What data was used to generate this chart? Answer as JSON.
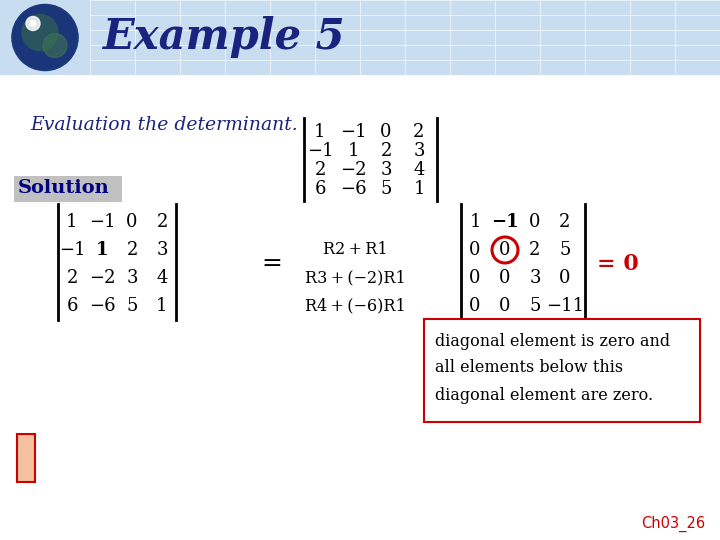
{
  "title": "Example 5",
  "bg_color": "#ffffff",
  "header_bg": "#c8ddf0",
  "header_title": "Example 5",
  "header_title_color": "#1a237e",
  "problem_text": "Evaluation the determinant.",
  "problem_color": "#1a237e",
  "solution_label": "Solution",
  "solution_bg_left": "#c8c8c8",
  "solution_bg_right": "#e8e8e8",
  "solution_text_color": "#000080",
  "matrix1": [
    [
      "1",
      "−1",
      "0",
      "2"
    ],
    [
      "−1",
      "1",
      "2",
      "3"
    ],
    [
      "2",
      "−2",
      "3",
      "4"
    ],
    [
      "6",
      "−6",
      "5",
      "1"
    ]
  ],
  "matrix2": [
    [
      "1",
      "−1",
      "0",
      "2"
    ],
    [
      "0",
      "0",
      "2",
      "5"
    ],
    [
      "0",
      "0",
      "3",
      "0"
    ],
    [
      "0",
      "0",
      "5",
      "−11"
    ]
  ],
  "row_ops": [
    "",
    "R2 + R1",
    "R3 + (−2)R1",
    "R4 + (−6)R1"
  ],
  "result": "= 0",
  "result_color": "#cc0000",
  "note_line1": "diagonal element is zero and",
  "note_line2": "all elements below this",
  "note_line3": "diagonal element are zero.",
  "note_border_color": "#cc0000",
  "footer": "Ch03_26",
  "footer_color": "#cc0000",
  "bar_fill": "#f5c0a0",
  "bar_edge": "#cc0000"
}
